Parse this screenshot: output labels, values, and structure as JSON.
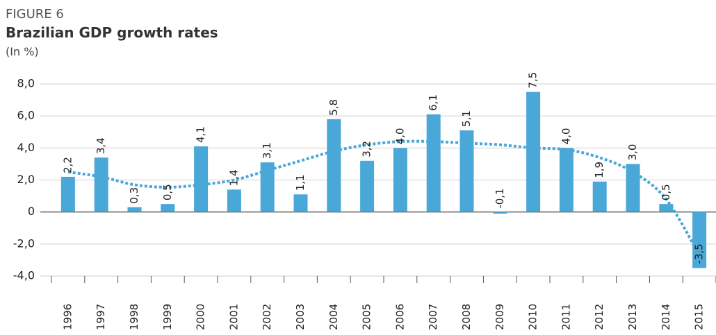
{
  "chart_data": {
    "type": "bar",
    "kicker": "FIGURE 6",
    "title": "Brazilian GDP growth rates",
    "subtitle": "(In %)",
    "categories": [
      "1996",
      "1997",
      "1998",
      "1999",
      "2000",
      "2001",
      "2002",
      "2003",
      "2004",
      "2005",
      "2006",
      "2007",
      "2008",
      "2009",
      "2010",
      "2011",
      "2012",
      "2013",
      "2014",
      "2015"
    ],
    "values": [
      2.2,
      3.4,
      0.3,
      0.5,
      4.1,
      1.4,
      3.1,
      1.1,
      5.8,
      3.2,
      4.0,
      6.1,
      5.1,
      -0.1,
      7.5,
      4.0,
      1.9,
      3.0,
      0.5,
      -3.5
    ],
    "value_labels": [
      "2,2",
      "3,4",
      "0,3",
      "0,5",
      "4,1",
      "1,4",
      "3,1",
      "1,1",
      "5,8",
      "3,2",
      "4,0",
      "6,1",
      "5,1",
      "-0,1",
      "7,5",
      "4,0",
      "1,9",
      "3,0",
      "0,5",
      "-3,5"
    ],
    "color": "#4aa8d8",
    "trend_values": [
      2.5,
      2.2,
      1.7,
      1.55,
      1.7,
      2.0,
      2.6,
      3.2,
      3.8,
      4.2,
      4.4,
      4.4,
      4.3,
      4.2,
      4.0,
      3.9,
      3.4,
      2.5,
      0.8,
      -2.7
    ],
    "trend_color": "#4aa8d8",
    "ylim": [
      -4,
      8
    ],
    "yticks": [
      {
        "value": -4,
        "label": "-4,0"
      },
      {
        "value": -2,
        "label": "-2,0"
      },
      0,
      {
        "value": 2,
        "label": "2,0"
      },
      {
        "value": 4,
        "label": "4,0"
      },
      {
        "value": 6,
        "label": "6,0"
      },
      {
        "value": 8,
        "label": "8,0"
      }
    ],
    "grid": true
  }
}
